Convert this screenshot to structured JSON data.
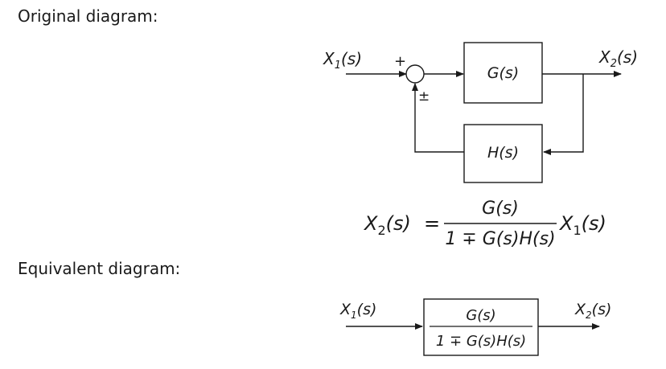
{
  "headings": {
    "original": "Original diagram:",
    "equivalent": "Equivalent diagram:"
  },
  "original": {
    "input": {
      "main": "X",
      "sub": "1",
      "arg": "(s)"
    },
    "output": {
      "main": "X",
      "sub": "2",
      "arg": "(s)"
    },
    "sum_plus": "+",
    "sum_pm": "±",
    "forward_block": "G(s)",
    "feedback_block": "H(s)"
  },
  "equation": {
    "lhs_main": "X",
    "lhs_sub": "2",
    "lhs_arg": "(s)",
    "equals": "=",
    "numerator": "G(s)",
    "denominator": "1 ∓ G(s)H(s)",
    "rhs_main": "X",
    "rhs_sub": "1",
    "rhs_arg": "(s)"
  },
  "equivalent": {
    "input": {
      "main": "X",
      "sub": "1",
      "arg": "(s)"
    },
    "output": {
      "main": "X",
      "sub": "2",
      "arg": "(s)"
    },
    "numerator": "G(s)",
    "denominator": "1 ∓ G(s)H(s)"
  }
}
